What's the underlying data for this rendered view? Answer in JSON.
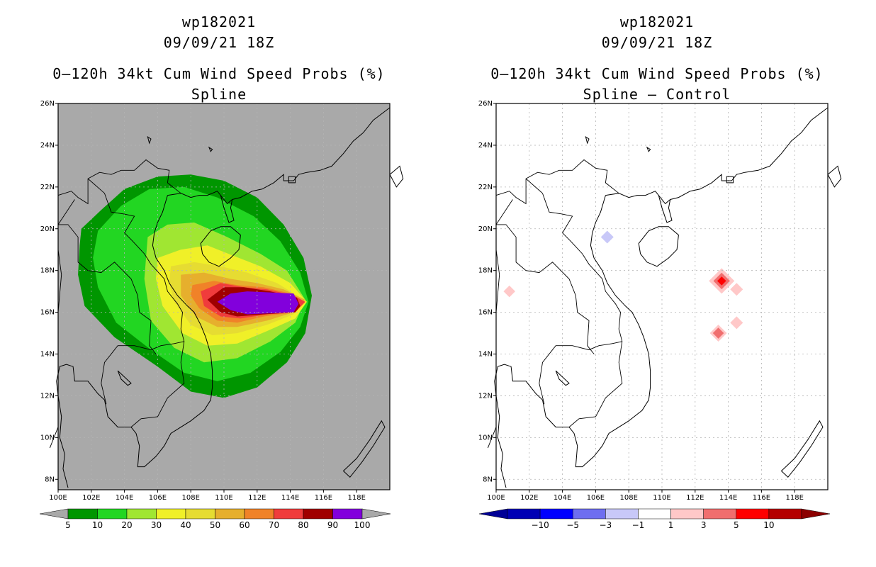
{
  "left_panel": {
    "storm_id": "wp182021",
    "datetime": "09/09/21 18Z",
    "product": "0–120h 34kt Cum Wind Speed Probs (%)",
    "subtitle": "Spline",
    "map_background": "#a9a9a9",
    "colorbar": {
      "colors": [
        "#009600",
        "#22d622",
        "#a0e632",
        "#f0f028",
        "#e6dc32",
        "#e6af2d",
        "#f08228",
        "#f03c3c",
        "#a00000",
        "#8200dc"
      ],
      "labels": [
        "5",
        "10",
        "20",
        "30",
        "40",
        "50",
        "60",
        "70",
        "80",
        "90",
        "100"
      ],
      "end_color": "#a9a9a9"
    },
    "probability_field": {
      "center_lon": 112.4,
      "center_lat": 16.3,
      "levels": [
        5,
        10,
        20,
        30,
        40,
        50,
        60,
        70,
        80,
        90
      ]
    }
  },
  "right_panel": {
    "storm_id": "wp182021",
    "datetime": "09/09/21 18Z",
    "product": "0–120h 34kt Cum Wind Speed Probs (%)",
    "subtitle": "Spline – Control",
    "map_background": "#ffffff",
    "colorbar": {
      "colors": [
        "#0000b4",
        "#0000ff",
        "#6e6ef0",
        "#c8c8f8",
        "#ffffff",
        "#ffc8c8",
        "#f06e6e",
        "#ff0000",
        "#b40000"
      ],
      "labels": [
        "−10",
        "−5",
        "−3",
        "−1",
        "1",
        "3",
        "5",
        "10"
      ],
      "left_end_color": "#000096",
      "right_end_color": "#8c0000"
    },
    "difference_spots": [
      {
        "lon": 113.6,
        "lat": 17.5,
        "value": 8
      },
      {
        "lon": 114.5,
        "lat": 17.1,
        "value": 2
      },
      {
        "lon": 113.4,
        "lat": 15.0,
        "value": 4
      },
      {
        "lon": 114.5,
        "lat": 15.5,
        "value": 2
      },
      {
        "lon": 106.7,
        "lat": 19.6,
        "value": -2
      },
      {
        "lon": 100.8,
        "lat": 17.0,
        "value": 1.5
      }
    ]
  },
  "map_axes": {
    "lon_min": 100,
    "lon_max": 120,
    "lat_min": 7.5,
    "lat_max": 26,
    "lon_ticks": [
      "100E",
      "102E",
      "104E",
      "106E",
      "108E",
      "110E",
      "112E",
      "114E",
      "116E",
      "118E"
    ],
    "lat_ticks": [
      "26N",
      "24N",
      "22N",
      "20N",
      "18N",
      "16N",
      "14N",
      "12N",
      "10N",
      "8N"
    ]
  }
}
